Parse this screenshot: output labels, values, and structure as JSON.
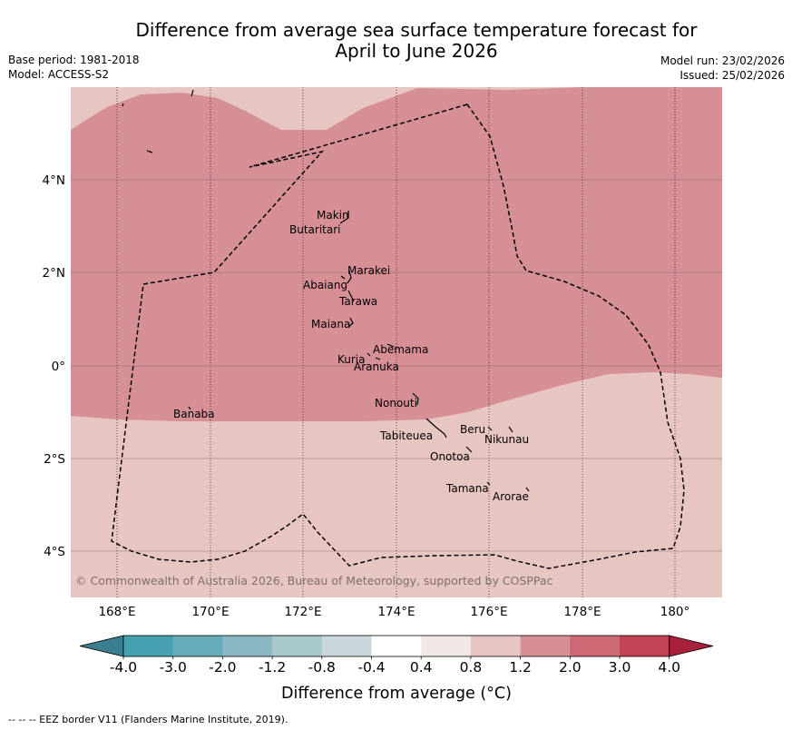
{
  "title_line1": "Difference from average sea surface temperature forecast for",
  "title_line2": "April to June 2026",
  "base_period": "Base period: 1981-2018",
  "model": "Model: ACCESS-S2",
  "model_run": "Model run: 23/02/2026",
  "issued": "Issued: 25/02/2026",
  "copyright": "© Commonwealth of Australia 2026, Bureau of Meteorology, supported by COSPPac",
  "lon_ticks": [
    "168°E",
    "170°E",
    "172°E",
    "174°E",
    "176°E",
    "178°E",
    "180°"
  ],
  "lat_ticks": [
    "4°N",
    "2°N",
    "0°",
    "2°S",
    "4°S"
  ],
  "places": {
    "makin": "Makin",
    "butaritari": "Butaritari",
    "marakei": "Marakei",
    "abaiang": "Abaiang",
    "tarawa": "Tarawa",
    "maiana": "Maiana",
    "abemama": "Abemama",
    "kuria": "Kuria",
    "aranuka": "Aranuka",
    "nonouti": "Nonouti",
    "banaba": "Banaba",
    "beru": "Beru",
    "nikunau": "Nikunau",
    "tabiteuea": "Tabiteuea",
    "onotoa": "Onotoa",
    "tamana": "Tamana",
    "arorae": "Arorae"
  },
  "colorbar": {
    "ticks": [
      "-4.0",
      "-3.0",
      "-2.0",
      "-1.2",
      "-0.8",
      "-0.4",
      "0.4",
      "0.8",
      "1.2",
      "2.0",
      "3.0",
      "4.0"
    ],
    "label": "Difference from average (°C)",
    "colors": [
      "#3a7f8f",
      "#45a0b0",
      "#66acb9",
      "#89b8c2",
      "#a9c8ce",
      "#c8d8dc",
      "#ffffff",
      "#f0e8e6",
      "#e7c6c1",
      "#d58f95",
      "#cd6a75",
      "#c24454",
      "#a8203a"
    ]
  },
  "footer": "-- -- -- EEZ border V11 (Flanders Marine Institute, 2019)."
}
